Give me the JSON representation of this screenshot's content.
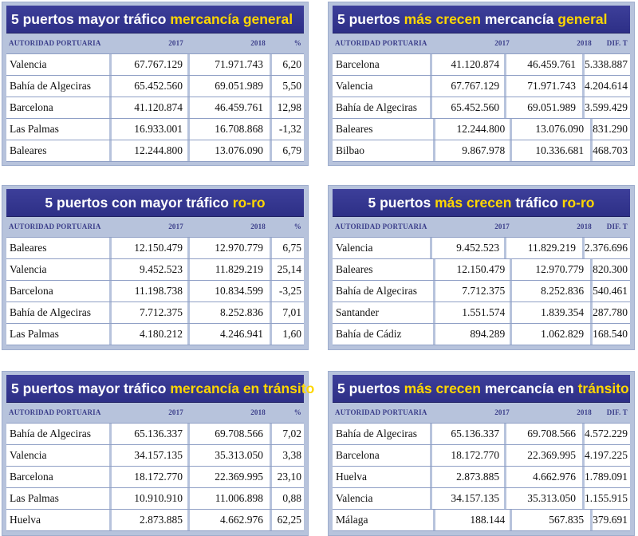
{
  "headers": {
    "autoridad": "AUTORIDAD PORTUARIA",
    "y2017": "2017",
    "y2018": "2018",
    "pct": "%",
    "dif": "DIF. T"
  },
  "tables": [
    {
      "title_pre": "5 puertos mayor tráfico ",
      "title_hl": "mercancía general",
      "title_post": "",
      "last_col": "%",
      "rows": [
        [
          "Valencia",
          "67.767.129",
          "71.971.743",
          "6,20"
        ],
        [
          "Bahía de Algeciras",
          "65.452.560",
          "69.051.989",
          "5,50"
        ],
        [
          "Barcelona",
          "41.120.874",
          "46.459.761",
          "12,98"
        ],
        [
          "Las Palmas",
          "16.933.001",
          "16.708.868",
          "-1,32"
        ],
        [
          "Baleares",
          "12.244.800",
          "13.076.090",
          "6,79"
        ]
      ]
    },
    {
      "title_pre": "5 puertos ",
      "title_hl": "más crecen",
      "title_post": " mercancía ",
      "title_hl2": "general",
      "last_col": "DIF. T",
      "rows": [
        [
          "Barcelona",
          "41.120.874",
          "46.459.761",
          "5.338.887"
        ],
        [
          "Valencia",
          "67.767.129",
          "71.971.743",
          "4.204.614"
        ],
        [
          "Bahía de Algeciras",
          "65.452.560",
          "69.051.989",
          "3.599.429"
        ],
        [
          "Baleares",
          "12.244.800",
          "13.076.090",
          "831.290"
        ],
        [
          "Bilbao",
          "9.867.978",
          "10.336.681",
          "468.703"
        ]
      ]
    },
    {
      "title_pre": "5 puertos con mayor tráfico ",
      "title_hl": "ro-ro",
      "title_post": "",
      "last_col": "%",
      "rows": [
        [
          "Baleares",
          "12.150.479",
          "12.970.779",
          "6,75"
        ],
        [
          "Valencia",
          "9.452.523",
          "11.829.219",
          "25,14"
        ],
        [
          "Barcelona",
          "11.198.738",
          "10.834.599",
          "-3,25"
        ],
        [
          "Bahía de Algeciras",
          "7.712.375",
          "8.252.836",
          "7,01"
        ],
        [
          "Las Palmas",
          "4.180.212",
          "4.246.941",
          "1,60"
        ]
      ]
    },
    {
      "title_pre": "5 puertos ",
      "title_hl": "más crecen",
      "title_post": " tráfico ",
      "title_hl2": "ro-ro",
      "last_col": "DIF. T",
      "rows": [
        [
          "Valencia",
          "9.452.523",
          "11.829.219",
          "2.376.696"
        ],
        [
          "Baleares",
          "12.150.479",
          "12.970.779",
          "820.300"
        ],
        [
          "Bahía de Algeciras",
          "7.712.375",
          "8.252.836",
          "540.461"
        ],
        [
          "Santander",
          "1.551.574",
          "1.839.354",
          "287.780"
        ],
        [
          "Bahía de Cádiz",
          "894.289",
          "1.062.829",
          "168.540"
        ]
      ]
    },
    {
      "title_pre": "5 puertos mayor tráfico ",
      "title_hl": "mercancía en tránsito",
      "title_post": "",
      "last_col": "%",
      "rows": [
        [
          "Bahía de Algeciras",
          "65.136.337",
          "69.708.566",
          "7,02"
        ],
        [
          "Valencia",
          "34.157.135",
          "35.313.050",
          "3,38"
        ],
        [
          "Barcelona",
          "18.172.770",
          "22.369.995",
          "23,10"
        ],
        [
          "Las Palmas",
          "10.910.910",
          "11.006.898",
          "0,88"
        ],
        [
          "Huelva",
          "2.873.885",
          "4.662.976",
          "62,25"
        ]
      ]
    },
    {
      "title_pre": "5 puertos ",
      "title_hl": "más crecen",
      "title_post": " mercancía en ",
      "title_hl2": "tránsito",
      "last_col": "DIF. T",
      "rows": [
        [
          "Bahía de Algeciras",
          "65.136.337",
          "69.708.566",
          "4.572.229"
        ],
        [
          "Barcelona",
          "18.172.770",
          "22.369.995",
          "4.197.225"
        ],
        [
          "Huelva",
          "2.873.885",
          "4.662.976",
          "1.789.091"
        ],
        [
          "Valencia",
          "34.157.135",
          "35.313.050",
          "1.155.915"
        ],
        [
          "Málaga",
          "188.144",
          "567.835",
          "379.691"
        ]
      ]
    }
  ]
}
